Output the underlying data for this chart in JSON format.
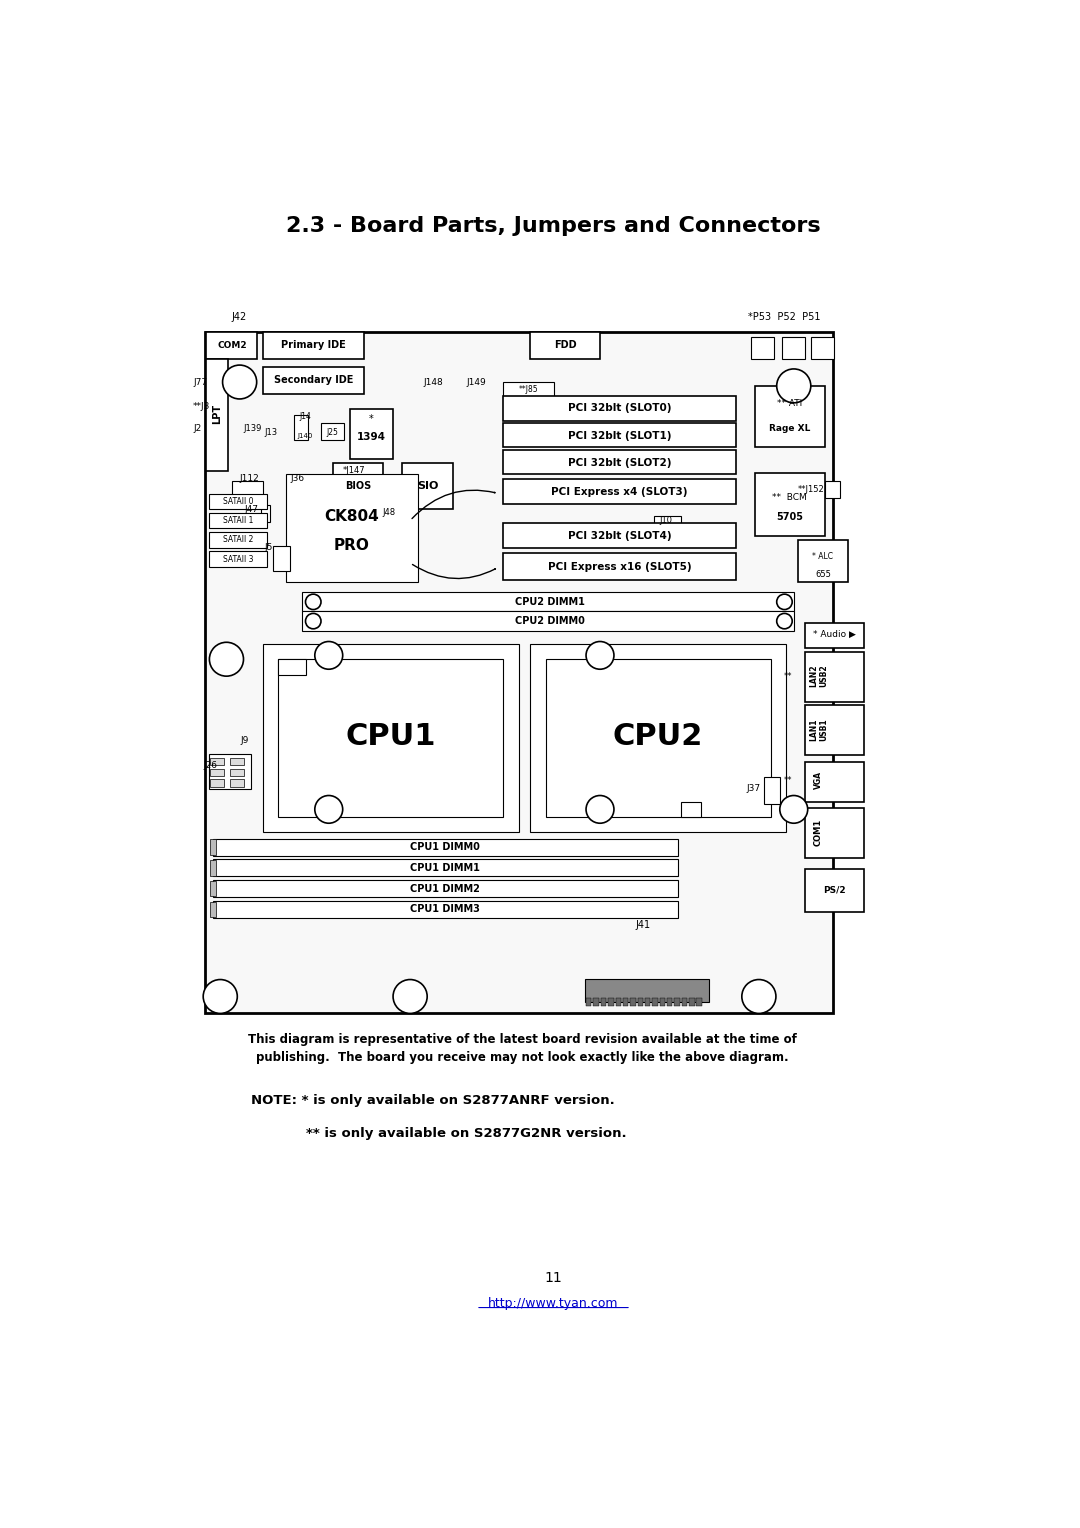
{
  "title": "2.3 - Board Parts, Jumpers and Connectors",
  "bg_color": "#ffffff",
  "caption": "This diagram is representative of the latest board revision available at the time of\npublishing.  The board you receive may not look exactly like the above diagram.",
  "note_line1": "NOTE: * is only available on S2877ANRF version.",
  "note_line2": "** is only available on S2877G2NR version.",
  "page_number": "11",
  "url": "http://www.tyan.com"
}
